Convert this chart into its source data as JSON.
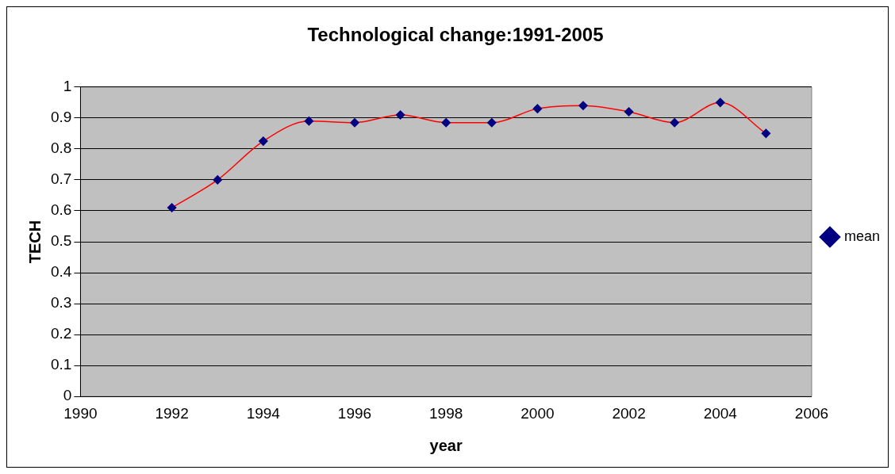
{
  "chart_data": {
    "type": "line",
    "title": "Technological change:1991-2005",
    "xlabel": "year",
    "ylabel": "TECH",
    "x": [
      1992,
      1993,
      1994,
      1995,
      1996,
      1997,
      1998,
      1999,
      2000,
      2001,
      2002,
      2003,
      2004,
      2005
    ],
    "series": [
      {
        "name": "mean",
        "color": "#ff0000",
        "values": [
          0.61,
          0.7,
          0.825,
          0.89,
          0.885,
          0.91,
          0.885,
          0.885,
          0.93,
          0.94,
          0.92,
          0.885,
          0.95,
          0.85
        ]
      }
    ],
    "xlim": [
      1990,
      2006
    ],
    "xticks": [
      1990,
      1992,
      1994,
      1996,
      1998,
      2000,
      2002,
      2004,
      2006
    ],
    "ylim": [
      0,
      1
    ],
    "yticks": [
      0,
      0.1,
      0.2,
      0.3,
      0.4,
      0.5,
      0.6,
      0.7,
      0.8,
      0.9,
      1
    ],
    "grid": "y",
    "legend": "right",
    "marker": "diamond",
    "line_style": "solid"
  }
}
